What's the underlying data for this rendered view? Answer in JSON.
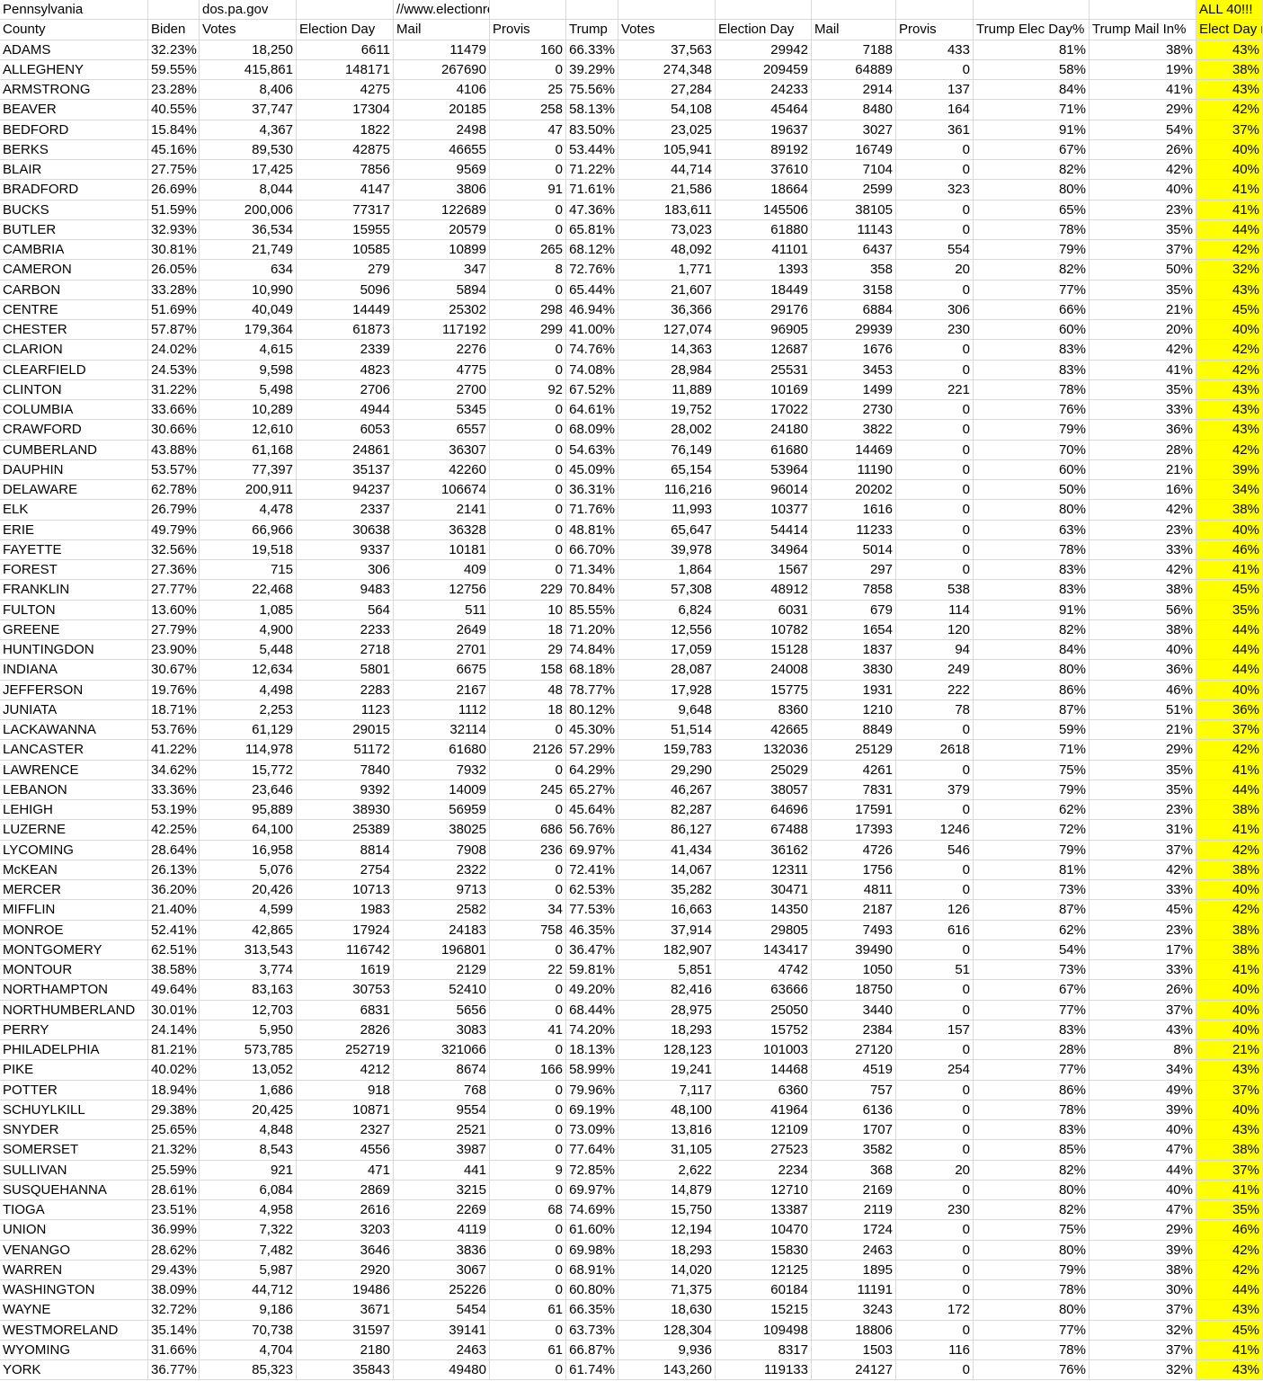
{
  "table": {
    "banner": [
      "Pennsylvania",
      null,
      "dos.pa.gov",
      null,
      "//www.electionreturns.pa.gov/",
      null,
      null,
      null,
      null,
      null,
      null,
      null,
      null,
      "ALL 40!!!"
    ],
    "header": [
      "County",
      "Biden",
      "Votes",
      "Election Day",
      "Mail",
      "Provis",
      "Trump",
      "Votes",
      "Election Day",
      "Mail",
      "Provis",
      "Trump Elec Day%",
      "Trump Mail In%",
      "Elect Day r"
    ],
    "rows": [
      [
        "ADAMS",
        "32.23%",
        "18,250",
        "6611",
        "11479",
        "160",
        "66.33%",
        "37,563",
        "29942",
        "7188",
        "433",
        "81%",
        "38%",
        "43%"
      ],
      [
        "ALLEGHENY",
        "59.55%",
        "415,861",
        "148171",
        "267690",
        "0",
        "39.29%",
        "274,348",
        "209459",
        "64889",
        "0",
        "58%",
        "19%",
        "38%"
      ],
      [
        "ARMSTRONG",
        "23.28%",
        "8,406",
        "4275",
        "4106",
        "25",
        "75.56%",
        "27,284",
        "24233",
        "2914",
        "137",
        "84%",
        "41%",
        "43%"
      ],
      [
        "BEAVER",
        "40.55%",
        "37,747",
        "17304",
        "20185",
        "258",
        "58.13%",
        "54,108",
        "45464",
        "8480",
        "164",
        "71%",
        "29%",
        "42%"
      ],
      [
        "BEDFORD",
        "15.84%",
        "4,367",
        "1822",
        "2498",
        "47",
        "83.50%",
        "23,025",
        "19637",
        "3027",
        "361",
        "91%",
        "54%",
        "37%"
      ],
      [
        "BERKS",
        "45.16%",
        "89,530",
        "42875",
        "46655",
        "0",
        "53.44%",
        "105,941",
        "89192",
        "16749",
        "0",
        "67%",
        "26%",
        "40%"
      ],
      [
        "BLAIR",
        "27.75%",
        "17,425",
        "7856",
        "9569",
        "0",
        "71.22%",
        "44,714",
        "37610",
        "7104",
        "0",
        "82%",
        "42%",
        "40%"
      ],
      [
        "BRADFORD",
        "26.69%",
        "8,044",
        "4147",
        "3806",
        "91",
        "71.61%",
        "21,586",
        "18664",
        "2599",
        "323",
        "80%",
        "40%",
        "41%"
      ],
      [
        "BUCKS",
        "51.59%",
        "200,006",
        "77317",
        "122689",
        "0",
        "47.36%",
        "183,611",
        "145506",
        "38105",
        "0",
        "65%",
        "23%",
        "41%"
      ],
      [
        "BUTLER",
        "32.93%",
        "36,534",
        "15955",
        "20579",
        "0",
        "65.81%",
        "73,023",
        "61880",
        "11143",
        "0",
        "78%",
        "35%",
        "44%"
      ],
      [
        "CAMBRIA",
        "30.81%",
        "21,749",
        "10585",
        "10899",
        "265",
        "68.12%",
        "48,092",
        "41101",
        "6437",
        "554",
        "79%",
        "37%",
        "42%"
      ],
      [
        "CAMERON",
        "26.05%",
        "634",
        "279",
        "347",
        "8",
        "72.76%",
        "1,771",
        "1393",
        "358",
        "20",
        "82%",
        "50%",
        "32%"
      ],
      [
        "CARBON",
        "33.28%",
        "10,990",
        "5096",
        "5894",
        "0",
        "65.44%",
        "21,607",
        "18449",
        "3158",
        "0",
        "77%",
        "35%",
        "43%"
      ],
      [
        "CENTRE",
        "51.69%",
        "40,049",
        "14449",
        "25302",
        "298",
        "46.94%",
        "36,366",
        "29176",
        "6884",
        "306",
        "66%",
        "21%",
        "45%"
      ],
      [
        "CHESTER",
        "57.87%",
        "179,364",
        "61873",
        "117192",
        "299",
        "41.00%",
        "127,074",
        "96905",
        "29939",
        "230",
        "60%",
        "20%",
        "40%"
      ],
      [
        "CLARION",
        "24.02%",
        "4,615",
        "2339",
        "2276",
        "0",
        "74.76%",
        "14,363",
        "12687",
        "1676",
        "0",
        "83%",
        "42%",
        "42%"
      ],
      [
        "CLEARFIELD",
        "24.53%",
        "9,598",
        "4823",
        "4775",
        "0",
        "74.08%",
        "28,984",
        "25531",
        "3453",
        "0",
        "83%",
        "41%",
        "42%"
      ],
      [
        "CLINTON",
        "31.22%",
        "5,498",
        "2706",
        "2700",
        "92",
        "67.52%",
        "11,889",
        "10169",
        "1499",
        "221",
        "78%",
        "35%",
        "43%"
      ],
      [
        "COLUMBIA",
        "33.66%",
        "10,289",
        "4944",
        "5345",
        "0",
        "64.61%",
        "19,752",
        "17022",
        "2730",
        "0",
        "76%",
        "33%",
        "43%"
      ],
      [
        "CRAWFORD",
        "30.66%",
        "12,610",
        "6053",
        "6557",
        "0",
        "68.09%",
        "28,002",
        "24180",
        "3822",
        "0",
        "79%",
        "36%",
        "43%"
      ],
      [
        "CUMBERLAND",
        "43.88%",
        "61,168",
        "24861",
        "36307",
        "0",
        "54.63%",
        "76,149",
        "61680",
        "14469",
        "0",
        "70%",
        "28%",
        "42%"
      ],
      [
        "DAUPHIN",
        "53.57%",
        "77,397",
        "35137",
        "42260",
        "0",
        "45.09%",
        "65,154",
        "53964",
        "11190",
        "0",
        "60%",
        "21%",
        "39%"
      ],
      [
        "DELAWARE",
        "62.78%",
        "200,911",
        "94237",
        "106674",
        "0",
        "36.31%",
        "116,216",
        "96014",
        "20202",
        "0",
        "50%",
        "16%",
        "34%"
      ],
      [
        "ELK",
        "26.79%",
        "4,478",
        "2337",
        "2141",
        "0",
        "71.76%",
        "11,993",
        "10377",
        "1616",
        "0",
        "80%",
        "42%",
        "38%"
      ],
      [
        "ERIE",
        "49.79%",
        "66,966",
        "30638",
        "36328",
        "0",
        "48.81%",
        "65,647",
        "54414",
        "11233",
        "0",
        "63%",
        "23%",
        "40%"
      ],
      [
        "FAYETTE",
        "32.56%",
        "19,518",
        "9337",
        "10181",
        "0",
        "66.70%",
        "39,978",
        "34964",
        "5014",
        "0",
        "78%",
        "33%",
        "46%"
      ],
      [
        "FOREST",
        "27.36%",
        "715",
        "306",
        "409",
        "0",
        "71.34%",
        "1,864",
        "1567",
        "297",
        "0",
        "83%",
        "42%",
        "41%"
      ],
      [
        "FRANKLIN",
        "27.77%",
        "22,468",
        "9483",
        "12756",
        "229",
        "70.84%",
        "57,308",
        "48912",
        "7858",
        "538",
        "83%",
        "38%",
        "45%"
      ],
      [
        "FULTON",
        "13.60%",
        "1,085",
        "564",
        "511",
        "10",
        "85.55%",
        "6,824",
        "6031",
        "679",
        "114",
        "91%",
        "56%",
        "35%"
      ],
      [
        "GREENE",
        "27.79%",
        "4,900",
        "2233",
        "2649",
        "18",
        "71.20%",
        "12,556",
        "10782",
        "1654",
        "120",
        "82%",
        "38%",
        "44%"
      ],
      [
        "HUNTINGDON",
        "23.90%",
        "5,448",
        "2718",
        "2701",
        "29",
        "74.84%",
        "17,059",
        "15128",
        "1837",
        "94",
        "84%",
        "40%",
        "44%"
      ],
      [
        "INDIANA",
        "30.67%",
        "12,634",
        "5801",
        "6675",
        "158",
        "68.18%",
        "28,087",
        "24008",
        "3830",
        "249",
        "80%",
        "36%",
        "44%"
      ],
      [
        "JEFFERSON",
        "19.76%",
        "4,498",
        "2283",
        "2167",
        "48",
        "78.77%",
        "17,928",
        "15775",
        "1931",
        "222",
        "86%",
        "46%",
        "40%"
      ],
      [
        "JUNIATA",
        "18.71%",
        "2,253",
        "1123",
        "1112",
        "18",
        "80.12%",
        "9,648",
        "8360",
        "1210",
        "78",
        "87%",
        "51%",
        "36%"
      ],
      [
        "LACKAWANNA",
        "53.76%",
        "61,129",
        "29015",
        "32114",
        "0",
        "45.30%",
        "51,514",
        "42665",
        "8849",
        "0",
        "59%",
        "21%",
        "37%"
      ],
      [
        "LANCASTER",
        "41.22%",
        "114,978",
        "51172",
        "61680",
        "2126",
        "57.29%",
        "159,783",
        "132036",
        "25129",
        "2618",
        "71%",
        "29%",
        "42%"
      ],
      [
        "LAWRENCE",
        "34.62%",
        "15,772",
        "7840",
        "7932",
        "0",
        "64.29%",
        "29,290",
        "25029",
        "4261",
        "0",
        "75%",
        "35%",
        "41%"
      ],
      [
        "LEBANON",
        "33.36%",
        "23,646",
        "9392",
        "14009",
        "245",
        "65.27%",
        "46,267",
        "38057",
        "7831",
        "379",
        "79%",
        "35%",
        "44%"
      ],
      [
        "LEHIGH",
        "53.19%",
        "95,889",
        "38930",
        "56959",
        "0",
        "45.64%",
        "82,287",
        "64696",
        "17591",
        "0",
        "62%",
        "23%",
        "38%"
      ],
      [
        "LUZERNE",
        "42.25%",
        "64,100",
        "25389",
        "38025",
        "686",
        "56.76%",
        "86,127",
        "67488",
        "17393",
        "1246",
        "72%",
        "31%",
        "41%"
      ],
      [
        "LYCOMING",
        "28.64%",
        "16,958",
        "8814",
        "7908",
        "236",
        "69.97%",
        "41,434",
        "36162",
        "4726",
        "546",
        "79%",
        "37%",
        "42%"
      ],
      [
        "McKEAN",
        "26.13%",
        "5,076",
        "2754",
        "2322",
        "0",
        "72.41%",
        "14,067",
        "12311",
        "1756",
        "0",
        "81%",
        "42%",
        "38%"
      ],
      [
        "MERCER",
        "36.20%",
        "20,426",
        "10713",
        "9713",
        "0",
        "62.53%",
        "35,282",
        "30471",
        "4811",
        "0",
        "73%",
        "33%",
        "40%"
      ],
      [
        "MIFFLIN",
        "21.40%",
        "4,599",
        "1983",
        "2582",
        "34",
        "77.53%",
        "16,663",
        "14350",
        "2187",
        "126",
        "87%",
        "45%",
        "42%"
      ],
      [
        "MONROE",
        "52.41%",
        "42,865",
        "17924",
        "24183",
        "758",
        "46.35%",
        "37,914",
        "29805",
        "7493",
        "616",
        "62%",
        "23%",
        "38%"
      ],
      [
        "MONTGOMERY",
        "62.51%",
        "313,543",
        "116742",
        "196801",
        "0",
        "36.47%",
        "182,907",
        "143417",
        "39490",
        "0",
        "54%",
        "17%",
        "38%"
      ],
      [
        "MONTOUR",
        "38.58%",
        "3,774",
        "1619",
        "2129",
        "22",
        "59.81%",
        "5,851",
        "4742",
        "1050",
        "51",
        "73%",
        "33%",
        "41%"
      ],
      [
        "NORTHAMPTON",
        "49.64%",
        "83,163",
        "30753",
        "52410",
        "0",
        "49.20%",
        "82,416",
        "63666",
        "18750",
        "0",
        "67%",
        "26%",
        "40%"
      ],
      [
        "NORTHUMBERLAND",
        "30.01%",
        "12,703",
        "6831",
        "5656",
        "0",
        "68.44%",
        "28,975",
        "25050",
        "3440",
        "0",
        "77%",
        "37%",
        "40%"
      ],
      [
        "PERRY",
        "24.14%",
        "5,950",
        "2826",
        "3083",
        "41",
        "74.20%",
        "18,293",
        "15752",
        "2384",
        "157",
        "83%",
        "43%",
        "40%"
      ],
      [
        "PHILADELPHIA",
        "81.21%",
        "573,785",
        "252719",
        "321066",
        "0",
        "18.13%",
        "128,123",
        "101003",
        "27120",
        "0",
        "28%",
        "8%",
        "21%"
      ],
      [
        "PIKE",
        "40.02%",
        "13,052",
        "4212",
        "8674",
        "166",
        "58.99%",
        "19,241",
        "14468",
        "4519",
        "254",
        "77%",
        "34%",
        "43%"
      ],
      [
        "POTTER",
        "18.94%",
        "1,686",
        "918",
        "768",
        "0",
        "79.96%",
        "7,117",
        "6360",
        "757",
        "0",
        "86%",
        "49%",
        "37%"
      ],
      [
        "SCHUYLKILL",
        "29.38%",
        "20,425",
        "10871",
        "9554",
        "0",
        "69.19%",
        "48,100",
        "41964",
        "6136",
        "0",
        "78%",
        "39%",
        "40%"
      ],
      [
        "SNYDER",
        "25.65%",
        "4,848",
        "2327",
        "2521",
        "0",
        "73.09%",
        "13,816",
        "12109",
        "1707",
        "0",
        "83%",
        "40%",
        "43%"
      ],
      [
        "SOMERSET",
        "21.32%",
        "8,543",
        "4556",
        "3987",
        "0",
        "77.64%",
        "31,105",
        "27523",
        "3582",
        "0",
        "85%",
        "47%",
        "38%"
      ],
      [
        "SULLIVAN",
        "25.59%",
        "921",
        "471",
        "441",
        "9",
        "72.85%",
        "2,622",
        "2234",
        "368",
        "20",
        "82%",
        "44%",
        "37%"
      ],
      [
        "SUSQUEHANNA",
        "28.61%",
        "6,084",
        "2869",
        "3215",
        "0",
        "69.97%",
        "14,879",
        "12710",
        "2169",
        "0",
        "80%",
        "40%",
        "41%"
      ],
      [
        "TIOGA",
        "23.51%",
        "4,958",
        "2616",
        "2269",
        "68",
        "74.69%",
        "15,750",
        "13387",
        "2119",
        "230",
        "82%",
        "47%",
        "35%"
      ],
      [
        "UNION",
        "36.99%",
        "7,322",
        "3203",
        "4119",
        "0",
        "61.60%",
        "12,194",
        "10470",
        "1724",
        "0",
        "75%",
        "29%",
        "46%"
      ],
      [
        "VENANGO",
        "28.62%",
        "7,482",
        "3646",
        "3836",
        "0",
        "69.98%",
        "18,293",
        "15830",
        "2463",
        "0",
        "80%",
        "39%",
        "42%"
      ],
      [
        "WARREN",
        "29.43%",
        "5,987",
        "2920",
        "3067",
        "0",
        "68.91%",
        "14,020",
        "12125",
        "1895",
        "0",
        "79%",
        "38%",
        "42%"
      ],
      [
        "WASHINGTON",
        "38.09%",
        "44,712",
        "19486",
        "25226",
        "0",
        "60.80%",
        "71,375",
        "60184",
        "11191",
        "0",
        "78%",
        "30%",
        "44%"
      ],
      [
        "WAYNE",
        "32.72%",
        "9,186",
        "3671",
        "5454",
        "61",
        "66.35%",
        "18,630",
        "15215",
        "3243",
        "172",
        "80%",
        "37%",
        "43%"
      ],
      [
        "WESTMORELAND",
        "35.14%",
        "70,738",
        "31597",
        "39141",
        "0",
        "63.73%",
        "128,304",
        "109498",
        "18806",
        "0",
        "77%",
        "32%",
        "45%"
      ],
      [
        "WYOMING",
        "31.66%",
        "4,704",
        "2180",
        "2463",
        "61",
        "66.87%",
        "9,936",
        "8317",
        "1503",
        "116",
        "78%",
        "37%",
        "41%"
      ],
      [
        "YORK",
        "36.77%",
        "85,323",
        "35843",
        "49480",
        "0",
        "61.74%",
        "143,260",
        "119133",
        "24127",
        "0",
        "76%",
        "32%",
        "43%"
      ]
    ]
  }
}
